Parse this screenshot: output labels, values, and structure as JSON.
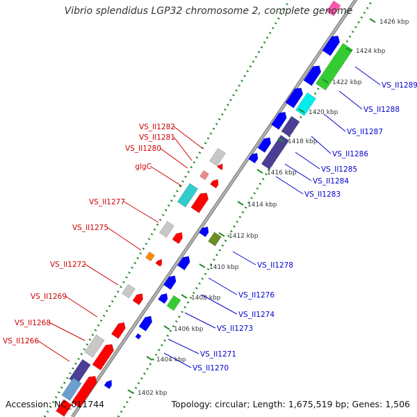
{
  "title": "Vibrio splendidus LGP32 chromosome 2, complete genome",
  "footer": {
    "accession": "Accession: NC_011744",
    "summary": "Topology: circular; Length: 1,675,519 bp; Genes: 1,506"
  },
  "colors": {
    "left_label": "#cc0000",
    "right_label": "#0000cc",
    "backbone": "#888888",
    "ruler": "#228b22"
  },
  "ticks": [
    {
      "label": "1402 kbp"
    },
    {
      "label": "1404 kbp"
    },
    {
      "label": "1406 kbp"
    },
    {
      "label": "1408 kbp"
    },
    {
      "label": "1410 kbp"
    },
    {
      "label": "1412 kbp"
    },
    {
      "label": "1414 kbp"
    },
    {
      "label": "1416 kbp"
    },
    {
      "label": "1418 kbp"
    },
    {
      "label": "1420 kbp"
    },
    {
      "label": "1422 kbp"
    },
    {
      "label": "1424 kbp"
    },
    {
      "label": "1426 kbp"
    }
  ],
  "left_labels": [
    {
      "text": "VS_II1282"
    },
    {
      "text": "VS_II1281"
    },
    {
      "text": "VS_II1280"
    },
    {
      "text": "glgC"
    },
    {
      "text": "VS_II1277"
    },
    {
      "text": "VS_II1275"
    },
    {
      "text": "VS_II1272"
    },
    {
      "text": "VS_II1269"
    },
    {
      "text": "VS_II1268"
    },
    {
      "text": "VS_II1266"
    }
  ],
  "right_labels": [
    {
      "text": "VS_II1289"
    },
    {
      "text": "VS_II1288"
    },
    {
      "text": "VS_II1287"
    },
    {
      "text": "VS_II1286"
    },
    {
      "text": "VS_II1285"
    },
    {
      "text": "VS_II1284"
    },
    {
      "text": "VS_II1283"
    },
    {
      "text": "VS_II1278"
    },
    {
      "text": "VS_II1276"
    },
    {
      "text": "VS_II1274"
    },
    {
      "text": "VS_II1273"
    },
    {
      "text": "VS_II1271"
    },
    {
      "text": "VS_II1270"
    }
  ]
}
